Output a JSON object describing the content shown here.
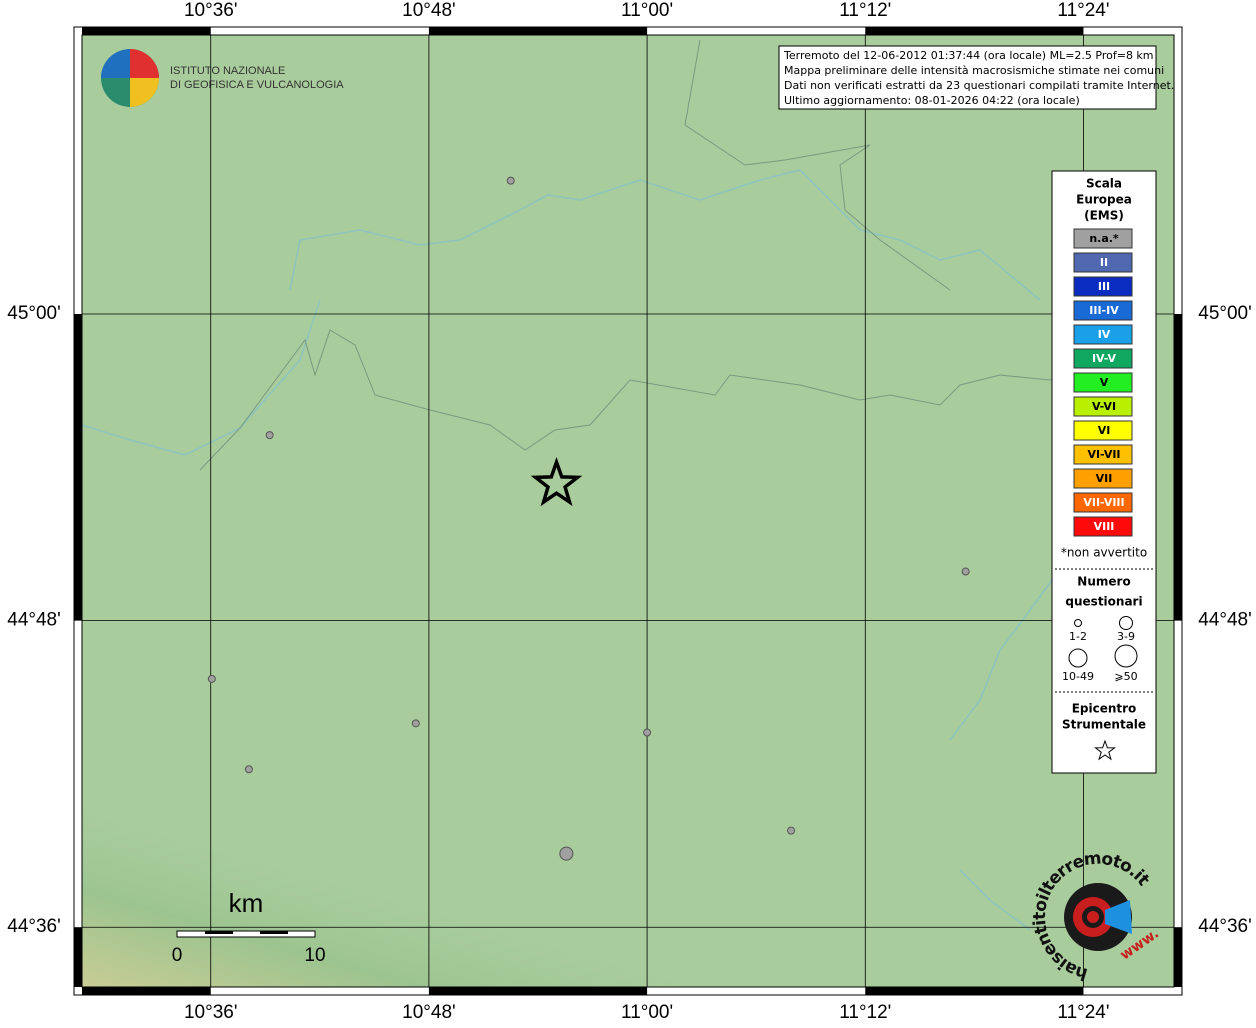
{
  "map": {
    "lon_ticks": [
      {
        "value": 10.6,
        "label": "10°36'"
      },
      {
        "value": 10.8,
        "label": "10°48'"
      },
      {
        "value": 11.0,
        "label": "11°00'"
      },
      {
        "value": 11.2,
        "label": "11°12'"
      },
      {
        "value": 11.4,
        "label": "11°24'"
      }
    ],
    "lat_ticks": [
      {
        "value": 45.0,
        "label": "45°00'"
      },
      {
        "value": 44.8,
        "label": "44°48'"
      },
      {
        "value": 44.6,
        "label": "44°36'"
      }
    ],
    "xlim": [
      10.482,
      11.483
    ],
    "ylim": [
      44.561,
      45.182
    ],
    "points": [
      {
        "lon": 10.875,
        "lat": 45.087,
        "class": "1-2"
      },
      {
        "lon": 10.654,
        "lat": 44.921,
        "class": "1-2"
      },
      {
        "lon": 11.292,
        "lat": 44.832,
        "class": "1-2"
      },
      {
        "lon": 10.601,
        "lat": 44.762,
        "class": "1-2"
      },
      {
        "lon": 10.788,
        "lat": 44.733,
        "class": "1-2"
      },
      {
        "lon": 10.635,
        "lat": 44.703,
        "class": "1-2"
      },
      {
        "lon": 11.0,
        "lat": 44.727,
        "class": "1-2"
      },
      {
        "lon": 11.132,
        "lat": 44.663,
        "class": "1-2"
      },
      {
        "lon": 10.926,
        "lat": 44.648,
        "class": "3-9"
      }
    ],
    "epicenter": {
      "lon": 10.917,
      "lat": 44.889
    }
  },
  "logo": {
    "lines": [
      "ISTITUTO NAZIONALE",
      "DI GEOFISICA E VULCANOLOGIA"
    ]
  },
  "info": {
    "lines": [
      "Terremoto del 12-06-2012 01:37:44 (ora locale) ML=2.5 Prof=8 km",
      "Mappa preliminare delle intensità macrosismiche stimate nei comuni",
      "Dati non verificati estratti da 23 questionari compilati tramite Internet.",
      "Ultimo aggiornamento: 08-01-2026 04:22 (ora locale)"
    ]
  },
  "legend": {
    "title": [
      "Scala",
      "Europea",
      "(EMS)"
    ],
    "items": [
      {
        "label": "n.a.*",
        "color": "#a0a0a0"
      },
      {
        "label": "II",
        "color": "#5068b0"
      },
      {
        "label": "III",
        "color": "#0a2cc0"
      },
      {
        "label": "III-IV",
        "color": "#1a6ad6"
      },
      {
        "label": "IV",
        "color": "#1aa0e8"
      },
      {
        "label": "IV-V",
        "color": "#10a860"
      },
      {
        "label": "V",
        "color": "#22ee22"
      },
      {
        "label": "V-VI",
        "color": "#b8f000"
      },
      {
        "label": "VI",
        "color": "#ffff00"
      },
      {
        "label": "VI-VII",
        "color": "#ffc000"
      },
      {
        "label": "VII",
        "color": "#ffa000"
      },
      {
        "label": "VII-VIII",
        "color": "#ff6800"
      },
      {
        "label": "VIII",
        "color": "#ff0a0a"
      }
    ],
    "note": "*non avvertito",
    "count_title": [
      "Numero",
      "questionari"
    ],
    "count_classes": [
      "1-2",
      "3-9",
      "10-49",
      "⩾50"
    ],
    "epicenter_title": [
      "Epicentro",
      "Strumentale"
    ]
  },
  "scale_bar": {
    "unit": "km",
    "labels": [
      "0",
      "10"
    ]
  },
  "badge": {
    "ring": "haisentitoilterremoto.it",
    "www": "www."
  }
}
